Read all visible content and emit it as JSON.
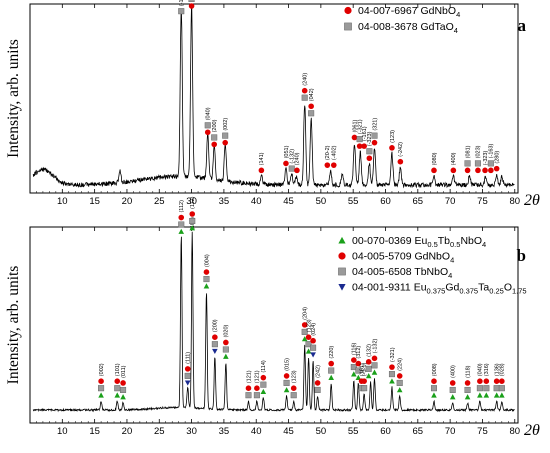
{
  "colors": {
    "circle": "#e00000",
    "square": "#9a9a9a",
    "triangle": "#1aa01a",
    "down_triangle": "#1a2a90",
    "trace": "#000000"
  },
  "chart_data": [
    {
      "panel": "a",
      "type": "line",
      "xlabel": "2θ",
      "ylabel": "Intensity, arb. units",
      "xlim": [
        5,
        80.5
      ],
      "xticks": [
        10,
        15,
        20,
        25,
        30,
        35,
        40,
        45,
        50,
        55,
        60,
        65,
        70,
        75,
        80
      ],
      "legend_position": "top-right",
      "legend": [
        {
          "marker": "circle",
          "label": "04-007-6967 GdNbO",
          "sub": "4"
        },
        {
          "marker": "square",
          "label": "04-008-3678 GdTaO",
          "sub": "4"
        }
      ],
      "peaks": [
        {
          "x": 18.9,
          "y": 0.07
        },
        {
          "x": 28.4,
          "y": 0.97
        },
        {
          "x": 30.0,
          "y": 1.0
        },
        {
          "x": 32.5,
          "y": 0.27
        },
        {
          "x": 33.5,
          "y": 0.2
        },
        {
          "x": 35.2,
          "y": 0.21
        },
        {
          "x": 40.8,
          "y": 0.05
        },
        {
          "x": 44.6,
          "y": 0.09
        },
        {
          "x": 45.5,
          "y": 0.06
        },
        {
          "x": 46.2,
          "y": 0.05
        },
        {
          "x": 47.5,
          "y": 0.47
        },
        {
          "x": 48.5,
          "y": 0.38
        },
        {
          "x": 51.5,
          "y": 0.08
        },
        {
          "x": 53.3,
          "y": 0.07
        },
        {
          "x": 55.2,
          "y": 0.24
        },
        {
          "x": 56.1,
          "y": 0.19
        },
        {
          "x": 57.5,
          "y": 0.12
        },
        {
          "x": 58.3,
          "y": 0.21
        },
        {
          "x": 61.0,
          "y": 0.18
        },
        {
          "x": 62.3,
          "y": 0.1
        },
        {
          "x": 67.5,
          "y": 0.05
        },
        {
          "x": 70.5,
          "y": 0.05
        },
        {
          "x": 73.0,
          "y": 0.05
        },
        {
          "x": 75.5,
          "y": 0.05
        },
        {
          "x": 77.2,
          "y": 0.06
        },
        {
          "x": 78.0,
          "y": 0.05
        }
      ],
      "annotations": [
        {
          "x": 28.4,
          "label": "(-121)",
          "markers": [
            "square"
          ]
        },
        {
          "x": 30.0,
          "label": "(121)",
          "markers": [
            "square",
            "circle"
          ]
        },
        {
          "x": 32.5,
          "label": "(040)",
          "markers": [
            "square",
            "circle"
          ]
        },
        {
          "x": 33.5,
          "label": "(200)",
          "markers": [
            "square",
            "circle"
          ]
        },
        {
          "x": 35.2,
          "label": "(002)",
          "markers": [
            "square",
            "circle"
          ]
        },
        {
          "x": 40.8,
          "label": "(141)",
          "markers": [
            "circle"
          ]
        },
        {
          "x": 44.6,
          "label": "(051)",
          "markers": [
            "circle"
          ]
        },
        {
          "x": 45.5,
          "label": "(-132)",
          "markers": [
            "square"
          ]
        },
        {
          "x": 46.3,
          "label": "(240)",
          "markers": [
            "circle"
          ]
        },
        {
          "x": 47.5,
          "label": "(240)",
          "markers": [
            "circle",
            "square"
          ]
        },
        {
          "x": 48.5,
          "label": "(042)",
          "markers": [
            "circle",
            "square"
          ]
        },
        {
          "x": 51.0,
          "label": "(20-2)",
          "markers": [
            "circle"
          ]
        },
        {
          "x": 52.0,
          "label": "(-402)",
          "markers": [
            "circle"
          ]
        },
        {
          "x": 55.2,
          "label": "(061)",
          "markers": [
            "circle"
          ]
        },
        {
          "x": 56.0,
          "label": "(-321)",
          "markers": [
            "square",
            "circle"
          ]
        },
        {
          "x": 56.7,
          "label": "(-161)",
          "markers": [
            "circle"
          ]
        },
        {
          "x": 57.5,
          "label": "(-323)",
          "markers": [
            "square",
            "circle"
          ]
        },
        {
          "x": 58.3,
          "label": "(321)",
          "markers": [
            "square",
            "circle"
          ]
        },
        {
          "x": 61.0,
          "label": "(123)",
          "markers": [
            "circle"
          ]
        },
        {
          "x": 62.3,
          "label": "(-242)",
          "markers": [
            "circle"
          ]
        },
        {
          "x": 67.5,
          "label": "(080)",
          "markers": [
            "circle"
          ]
        },
        {
          "x": 70.5,
          "label": "(400)",
          "markers": [
            "circle"
          ]
        },
        {
          "x": 72.7,
          "label": "(081)",
          "markers": [
            "square",
            "circle"
          ]
        },
        {
          "x": 74.3,
          "label": "(023)",
          "markers": [
            "square",
            "circle"
          ]
        },
        {
          "x": 75.4,
          "label": "(-323)",
          "markers": [
            "circle"
          ]
        },
        {
          "x": 76.3,
          "label": "(-163)",
          "markers": [
            "square",
            "circle"
          ]
        },
        {
          "x": 77.2,
          "label": "(280)",
          "markers": [
            "circle"
          ]
        }
      ]
    },
    {
      "panel": "b",
      "type": "line",
      "xlabel": "2θ",
      "ylabel": "Intensity, arb. units",
      "xlim": [
        5,
        80.5
      ],
      "xticks": [
        10,
        15,
        20,
        25,
        30,
        35,
        40,
        45,
        50,
        55,
        60,
        65,
        70,
        75,
        80
      ],
      "legend_position": "top-right",
      "legend": [
        {
          "marker": "triangle",
          "parts": [
            [
              "00-070-0369 Eu",
              ""
            ],
            [
              "0.5",
              "sub"
            ],
            [
              "Tb",
              ""
            ],
            [
              "0.5",
              "sub"
            ],
            [
              "NbO",
              ""
            ],
            [
              "4",
              "sub"
            ]
          ]
        },
        {
          "marker": "circle",
          "parts": [
            [
              "04-005-5709 GdNbO",
              ""
            ],
            [
              "4",
              "sub"
            ]
          ]
        },
        {
          "marker": "square",
          "parts": [
            [
              "04-005-6508 TbNbO",
              ""
            ],
            [
              "4",
              "sub"
            ]
          ]
        },
        {
          "marker": "down_triangle",
          "parts": [
            [
              "04-001-9311 Eu",
              ""
            ],
            [
              "0.375",
              "sub"
            ],
            [
              "Gd",
              ""
            ],
            [
              "0.375",
              "sub"
            ],
            [
              "Ta",
              ""
            ],
            [
              "0.25",
              "sub"
            ],
            [
              "O",
              ""
            ],
            [
              "1.75",
              "sub"
            ]
          ]
        }
      ],
      "peaks": [
        {
          "x": 16.0,
          "y": 0.05
        },
        {
          "x": 18.5,
          "y": 0.05
        },
        {
          "x": 19.4,
          "y": 0.04
        },
        {
          "x": 28.4,
          "y": 0.98
        },
        {
          "x": 29.4,
          "y": 0.12
        },
        {
          "x": 30.1,
          "y": 1.0
        },
        {
          "x": 32.3,
          "y": 0.67
        },
        {
          "x": 33.6,
          "y": 0.3
        },
        {
          "x": 35.3,
          "y": 0.27
        },
        {
          "x": 38.8,
          "y": 0.05
        },
        {
          "x": 40.1,
          "y": 0.05
        },
        {
          "x": 41.1,
          "y": 0.07
        },
        {
          "x": 44.7,
          "y": 0.08
        },
        {
          "x": 45.8,
          "y": 0.05
        },
        {
          "x": 47.5,
          "y": 0.37
        },
        {
          "x": 48.1,
          "y": 0.3
        },
        {
          "x": 48.8,
          "y": 0.28
        },
        {
          "x": 49.5,
          "y": 0.08
        },
        {
          "x": 51.6,
          "y": 0.15
        },
        {
          "x": 55.1,
          "y": 0.17
        },
        {
          "x": 55.8,
          "y": 0.15
        },
        {
          "x": 56.7,
          "y": 0.09
        },
        {
          "x": 57.7,
          "y": 0.16
        },
        {
          "x": 58.3,
          "y": 0.18
        },
        {
          "x": 61.0,
          "y": 0.13
        },
        {
          "x": 62.2,
          "y": 0.08
        },
        {
          "x": 67.5,
          "y": 0.05
        },
        {
          "x": 70.4,
          "y": 0.04
        },
        {
          "x": 72.7,
          "y": 0.04
        },
        {
          "x": 74.6,
          "y": 0.05
        },
        {
          "x": 77.2,
          "y": 0.05
        },
        {
          "x": 78.0,
          "y": 0.05
        }
      ],
      "annotations": [
        {
          "x": 16.0,
          "label": "(002)",
          "markers": [
            "circle",
            "square",
            "triangle"
          ]
        },
        {
          "x": 18.5,
          "label": "(101)",
          "markers": [
            "circle",
            "square",
            "triangle"
          ]
        },
        {
          "x": 19.4,
          "label": "(011)",
          "markers": [
            "circle",
            "square",
            "triangle"
          ]
        },
        {
          "x": 28.4,
          "label": "(112)",
          "markers": [
            "circle",
            "square",
            "triangle"
          ]
        },
        {
          "x": 29.4,
          "label": "(111)",
          "markers": [
            "circle",
            "square",
            "down_triangle"
          ]
        },
        {
          "x": 30.1,
          "label": "(103)",
          "markers": []
        },
        {
          "x": 30.1,
          "label": "(112)",
          "markers": [
            "circle",
            "square",
            "triangle"
          ]
        },
        {
          "x": 32.3,
          "label": "(004)",
          "markers": [
            "circle",
            "square",
            "triangle"
          ]
        },
        {
          "x": 33.6,
          "label": "(200)",
          "markers": [
            "circle",
            "square",
            "down_triangle"
          ]
        },
        {
          "x": 35.3,
          "label": "(020)",
          "markers": [
            "circle",
            "square",
            "triangle"
          ]
        },
        {
          "x": 38.8,
          "label": "(121)",
          "markers": [
            "circle",
            "square"
          ]
        },
        {
          "x": 40.1,
          "label": "(121)",
          "markers": [
            "circle",
            "square"
          ]
        },
        {
          "x": 41.1,
          "label": "(114)",
          "markers": [
            "circle",
            "square",
            "triangle"
          ]
        },
        {
          "x": 44.7,
          "label": "(015)",
          "markers": [
            "circle",
            "square",
            "triangle"
          ]
        },
        {
          "x": 45.8,
          "label": "(123)",
          "markers": [
            "circle",
            "square"
          ]
        },
        {
          "x": 47.5,
          "label": "(204)",
          "markers": [
            "circle",
            "square",
            "triangle"
          ]
        },
        {
          "x": 48.1,
          "label": "(123)",
          "markers": [
            "circle",
            "square",
            "triangle"
          ]
        },
        {
          "x": 48.8,
          "label": "(024)",
          "markers": [
            "circle",
            "square",
            "down_triangle"
          ]
        },
        {
          "x": 49.5,
          "label": "(242)",
          "markers": [
            "circle",
            "square"
          ]
        },
        {
          "x": 51.6,
          "label": "(220)",
          "markers": [
            "circle",
            "square",
            "triangle"
          ]
        },
        {
          "x": 55.1,
          "label": "(116)",
          "markers": [
            "circle",
            "square",
            "triangle"
          ]
        },
        {
          "x": 55.8,
          "label": "(312)",
          "markers": [
            "circle",
            "square",
            "triangle"
          ]
        },
        {
          "x": 56.3,
          "label": "(161)",
          "markers": [
            "circle",
            "square"
          ]
        },
        {
          "x": 56.7,
          "label": "(-3-1)",
          "markers": [
            "circle",
            "square"
          ]
        },
        {
          "x": 57.4,
          "label": "(132)",
          "markers": [
            "circle",
            "square",
            "triangle"
          ]
        },
        {
          "x": 58.3,
          "label": "(-132)",
          "markers": [
            "circle",
            "square",
            "triangle"
          ]
        },
        {
          "x": 61.0,
          "label": "(-321)",
          "markers": [
            "circle",
            "square",
            "triangle"
          ]
        },
        {
          "x": 62.2,
          "label": "(224)",
          "markers": [
            "circle",
            "square",
            "triangle"
          ]
        },
        {
          "x": 67.5,
          "label": "(008)",
          "markers": [
            "circle",
            "square",
            "triangle"
          ]
        },
        {
          "x": 70.4,
          "label": "(400)",
          "markers": [
            "circle",
            "square",
            "triangle"
          ]
        },
        {
          "x": 72.7,
          "label": "(118)",
          "markers": [
            "circle",
            "square",
            "triangle"
          ]
        },
        {
          "x": 74.6,
          "label": "(040)",
          "markers": [
            "circle",
            "square",
            "triangle"
          ]
        },
        {
          "x": 75.6,
          "label": "(316)",
          "markers": [
            "circle",
            "square",
            "triangle"
          ]
        },
        {
          "x": 77.2,
          "label": "(136)",
          "markers": [
            "circle",
            "square",
            "triangle"
          ]
        },
        {
          "x": 78.0,
          "label": "(028)",
          "markers": [
            "circle",
            "square",
            "triangle"
          ]
        }
      ]
    }
  ]
}
